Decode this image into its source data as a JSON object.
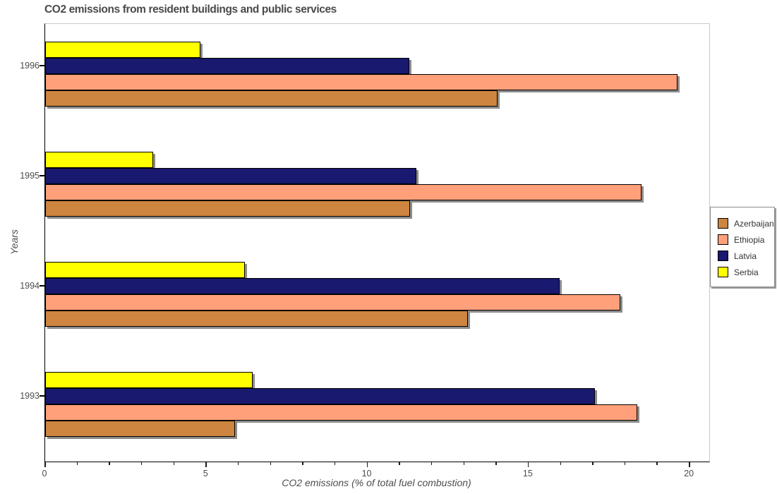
{
  "header": {
    "title": "CO2 emissions from resident buildings and public services"
  },
  "chart_data": {
    "type": "bar",
    "orientation": "horizontal",
    "title": "CO2 emissions from resident buildings and public services",
    "xlabel": "CO2 emissions (% of total fuel combustion)",
    "ylabel": "Years",
    "categories": [
      "1993",
      "1994",
      "1995",
      "1996"
    ],
    "category_display_order_top_to_bottom": [
      "1996",
      "1995",
      "1994",
      "1993"
    ],
    "series": [
      {
        "name": "Azerbaijan",
        "color": "#CD853F",
        "values": [
          5.9,
          13.11,
          11.33,
          14.03
        ]
      },
      {
        "name": "Ethiopia",
        "color": "#FFA07A",
        "values": [
          18.38,
          17.85,
          18.5,
          19.63
        ]
      },
      {
        "name": "Latvia",
        "color": "#191970",
        "values": [
          17.06,
          15.97,
          11.52,
          11.3
        ]
      },
      {
        "name": "Serbia",
        "color": "#FFFF00",
        "values": [
          6.43,
          6.2,
          3.35,
          4.82
        ]
      }
    ],
    "xlim": [
      0,
      20.61
    ],
    "xticks": [
      0,
      5,
      10,
      15,
      20
    ],
    "minor_tick_step": 1,
    "grid": false,
    "legend_position": "right-outside",
    "legend_entries": [
      "Azerbaijan",
      "Ethiopia",
      "Latvia",
      "Serbia"
    ],
    "bar_edge_color": "#000000",
    "bar_shadow_color": "#8c8c8c"
  }
}
